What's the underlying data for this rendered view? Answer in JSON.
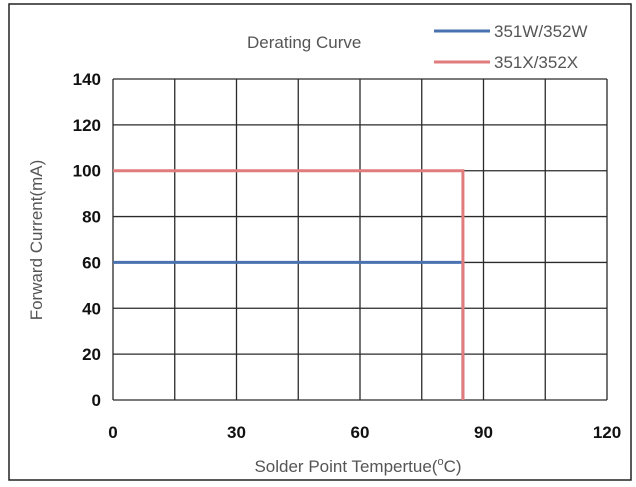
{
  "chart_data": {
    "type": "line",
    "title": "Derating Curve",
    "xlabel": "Solder Point Tempertue(°C)",
    "xlabel_parts": {
      "prefix": "Solder Point Tempertue(",
      "degree": "o",
      "suffix": "C)"
    },
    "ylabel": "Forward Current(mA)",
    "xlim": [
      0,
      120
    ],
    "ylim": [
      0,
      140
    ],
    "x_ticks": [
      0,
      30,
      60,
      90,
      120
    ],
    "x_tick_labels": [
      "0",
      "30",
      "60",
      "90",
      "120"
    ],
    "y_ticks": [
      0,
      20,
      40,
      60,
      80,
      100,
      120,
      140
    ],
    "y_tick_labels": [
      "0",
      "20",
      "40",
      "60",
      "80",
      "100",
      "120",
      "140"
    ],
    "x_grid_step": 15,
    "y_grid_step": 20,
    "grid": true,
    "legend_position": "top-right",
    "series": [
      {
        "name": "351W/352W",
        "color": "#4a72b0",
        "points": [
          [
            0,
            60
          ],
          [
            85,
            60
          ],
          [
            85,
            0
          ]
        ]
      },
      {
        "name": "351X/352X",
        "color": "#e07c7c",
        "points": [
          [
            0,
            100
          ],
          [
            85,
            100
          ],
          [
            85,
            0
          ]
        ]
      }
    ]
  }
}
